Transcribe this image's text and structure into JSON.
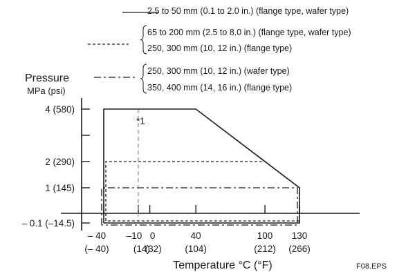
{
  "chart_data": {
    "type": "line",
    "title": "",
    "ylabel": "Pressure",
    "ylabel_unit": "MPa (psi)",
    "xlabel": "Temperature °C (°F)",
    "figure_id": "F08.EPS",
    "annotation": "*1",
    "annotation_x": -10,
    "y_ticks": [
      {
        "value": 4,
        "label": "4 (580)"
      },
      {
        "value": 2,
        "label": "2 (290)"
      },
      {
        "value": 1,
        "label": "1 (145)"
      },
      {
        "value": -0.1,
        "label": "– 0.1 (–14.5)"
      }
    ],
    "x_ticks": [
      {
        "value": -40,
        "top": "– 40",
        "bottom": "(– 40)"
      },
      {
        "value": -10,
        "top": "–10",
        "bottom": "(14)"
      },
      {
        "value": 0,
        "top": "0",
        "bottom": "(32)"
      },
      {
        "value": 40,
        "top": "40",
        "bottom": "(104)"
      },
      {
        "value": 100,
        "top": "100",
        "bottom": "(212)"
      },
      {
        "value": 130,
        "top": "130",
        "bottom": "(266)"
      }
    ],
    "series": [
      {
        "style": "solid",
        "legend": [
          "2.5 to 50 mm (0.1 to 2.0 in.) (flange type, wafer type)"
        ],
        "points": [
          [
            -40,
            -0.1
          ],
          [
            -40,
            4
          ],
          [
            40,
            4
          ],
          [
            130,
            1
          ],
          [
            130,
            -0.1
          ],
          [
            -40,
            -0.1
          ]
        ]
      },
      {
        "style": "dashed",
        "legend": [
          "65 to 200 mm (2.5 to 8.0 in.) (flange type, wafer type)",
          "250, 300 mm (10, 12 in.) (flange type)"
        ],
        "points": [
          [
            -40,
            -0.1
          ],
          [
            -40,
            2
          ],
          [
            100,
            2
          ],
          [
            130,
            1
          ],
          [
            130,
            -0.1
          ],
          [
            -40,
            -0.1
          ]
        ]
      },
      {
        "style": "dash-dot",
        "legend": [
          "250, 300 mm (10, 12 in.) (wafer type)",
          "350, 400 mm (14, 16 in.) (flange type)"
        ],
        "points": [
          [
            -40,
            -0.1
          ],
          [
            -40,
            1
          ],
          [
            130,
            1
          ],
          [
            130,
            -0.1
          ],
          [
            -40,
            -0.1
          ]
        ]
      }
    ]
  }
}
